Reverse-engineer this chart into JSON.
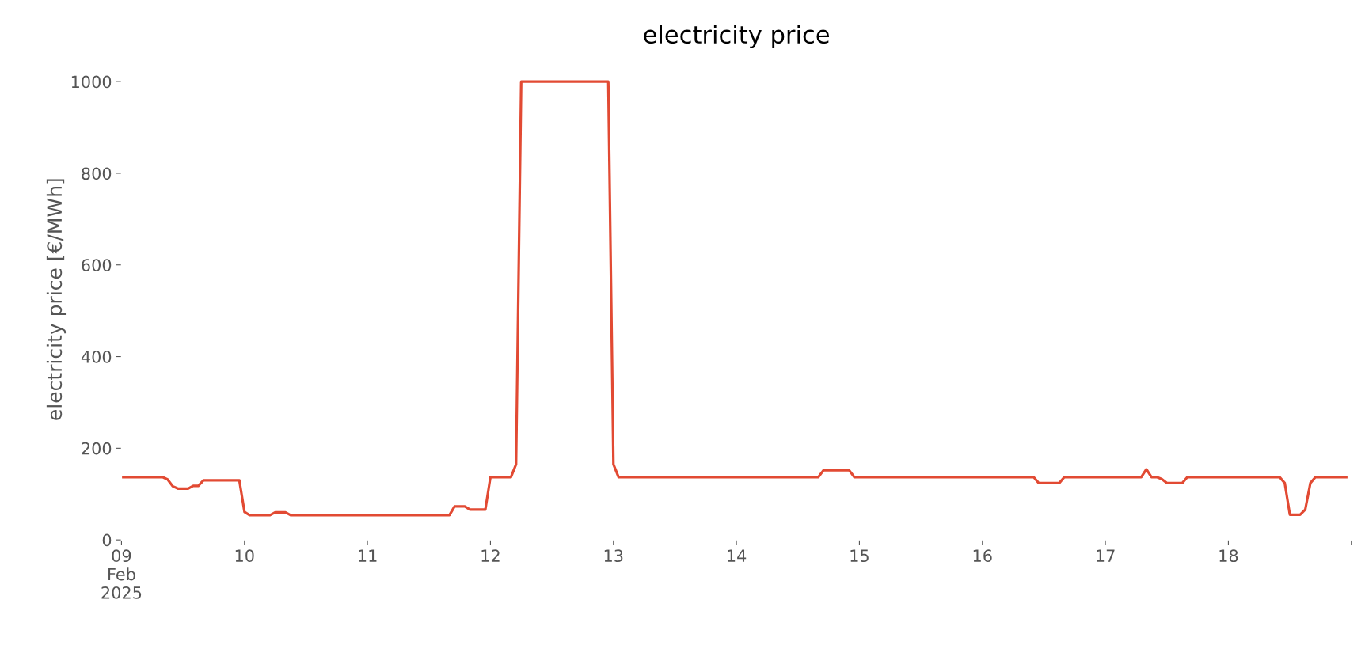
{
  "chart_data": {
    "type": "line",
    "title": "electricity price",
    "ylabel": "electricity price [€/MWh]",
    "x": [
      "2025-02-09T00:00",
      "2025-02-09T08:00",
      "2025-02-09T09:00",
      "2025-02-09T10:00",
      "2025-02-09T11:00",
      "2025-02-09T13:00",
      "2025-02-09T14:00",
      "2025-02-09T15:00",
      "2025-02-09T16:00",
      "2025-02-09T23:00",
      "2025-02-10T00:00",
      "2025-02-10T01:00",
      "2025-02-10T05:00",
      "2025-02-10T06:00",
      "2025-02-10T08:00",
      "2025-02-10T09:00",
      "2025-02-11T16:00",
      "2025-02-11T17:00",
      "2025-02-11T19:00",
      "2025-02-11T20:00",
      "2025-02-11T23:00",
      "2025-02-12T00:00",
      "2025-02-12T04:00",
      "2025-02-12T05:00",
      "2025-02-12T06:00",
      "2025-02-12T23:00",
      "2025-02-13T00:00",
      "2025-02-13T01:00",
      "2025-02-14T16:00",
      "2025-02-14T17:00",
      "2025-02-14T22:00",
      "2025-02-14T23:00",
      "2025-02-16T10:00",
      "2025-02-16T11:00",
      "2025-02-16T15:00",
      "2025-02-16T16:00",
      "2025-02-17T07:00",
      "2025-02-17T08:00",
      "2025-02-17T09:00",
      "2025-02-17T10:00",
      "2025-02-17T11:00",
      "2025-02-17T12:00",
      "2025-02-17T15:00",
      "2025-02-17T16:00",
      "2025-02-18T10:00",
      "2025-02-18T11:00",
      "2025-02-18T12:00",
      "2025-02-18T14:00",
      "2025-02-18T15:00",
      "2025-02-18T16:00",
      "2025-02-18T17:00",
      "2025-02-18T23:00"
    ],
    "series": [
      {
        "color": "#e24a33",
        "values": [
          137,
          137,
          132,
          117,
          112,
          112,
          118,
          118,
          130,
          130,
          61,
          54,
          54,
          60,
          60,
          54,
          54,
          73,
          73,
          66,
          66,
          137,
          137,
          165,
          1000,
          1000,
          165,
          137,
          137,
          152,
          152,
          137,
          137,
          124,
          124,
          137,
          137,
          154,
          137,
          137,
          133,
          124,
          124,
          137,
          137,
          124,
          55,
          55,
          66,
          124,
          137,
          137
        ]
      }
    ],
    "xlim": [
      "2025-02-09T00:00",
      "2025-02-19T00:00"
    ],
    "xticks": [
      {
        "value": "2025-02-09",
        "label": "09\nFeb\n2025"
      },
      {
        "value": "2025-02-10",
        "label": "10"
      },
      {
        "value": "2025-02-11",
        "label": "11"
      },
      {
        "value": "2025-02-12",
        "label": "12"
      },
      {
        "value": "2025-02-13",
        "label": "13"
      },
      {
        "value": "2025-02-14",
        "label": "14"
      },
      {
        "value": "2025-02-15",
        "label": "15"
      },
      {
        "value": "2025-02-16",
        "label": "16"
      },
      {
        "value": "2025-02-17",
        "label": "17"
      },
      {
        "value": "2025-02-18",
        "label": "18"
      },
      {
        "value": "2025-02-19",
        "label": null
      }
    ],
    "ylim": [
      0,
      1050
    ],
    "yticks": [
      0,
      200,
      400,
      600,
      800,
      1000
    ],
    "grid": false,
    "line_style": "solid",
    "marker": "none"
  }
}
